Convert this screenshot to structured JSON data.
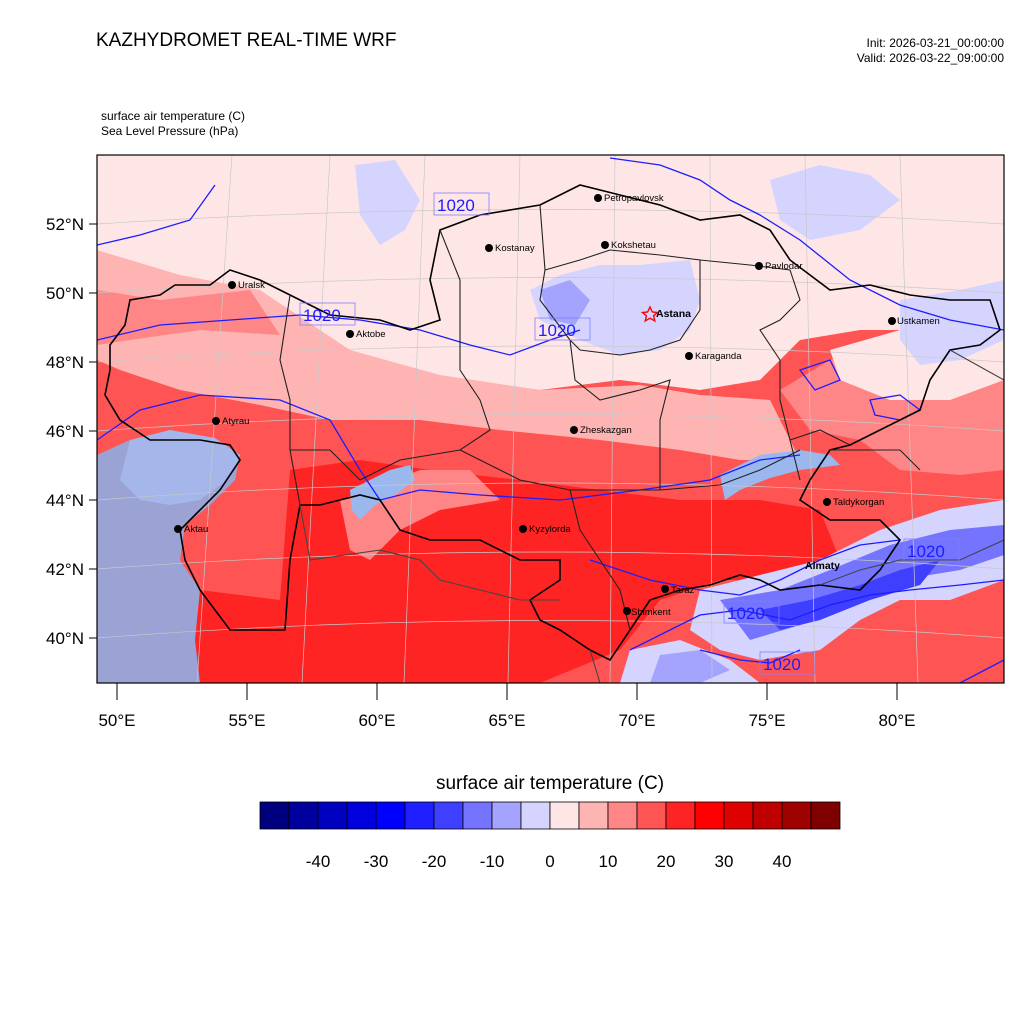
{
  "header": {
    "title": "KAZHYDROMET REAL-TIME WRF",
    "init": "Init: 2026-03-21_00:00:00",
    "valid": "Valid: 2026-03-22_09:00:00"
  },
  "fields": {
    "shaded": "surface air temperature   (C)",
    "contour": "Sea Level Pressure   (hPa)"
  },
  "map": {
    "lat_ticks": [
      "52°N",
      "50°N",
      "48°N",
      "46°N",
      "44°N",
      "42°N",
      "40°N"
    ],
    "lon_ticks": [
      "50°E",
      "55°E",
      "60°E",
      "65°E",
      "70°E",
      "75°E",
      "80°E"
    ],
    "cities": [
      {
        "name": "Petropavlovsk"
      },
      {
        "name": "Kostanay"
      },
      {
        "name": "Kokshetau"
      },
      {
        "name": "Pavlodar"
      },
      {
        "name": "Uralsk"
      },
      {
        "name": "Aktobe"
      },
      {
        "name": "Astana",
        "capital": true
      },
      {
        "name": "Ustkamen"
      },
      {
        "name": "Karaganda"
      },
      {
        "name": "Atyrau"
      },
      {
        "name": "Zheskazgan"
      },
      {
        "name": "Taldykorgan"
      },
      {
        "name": "Aktau"
      },
      {
        "name": "Kyzylorda"
      },
      {
        "name": "Almaty"
      },
      {
        "name": "Taraz"
      },
      {
        "name": "Shimkent"
      }
    ],
    "isobar_labels": [
      "1020",
      "1020",
      "1020",
      "1020",
      "1020",
      "1020"
    ],
    "colors": {
      "isobar": "#1d1dff",
      "border": "#000000",
      "capital_marker": "#ff0000"
    }
  },
  "colorbar": {
    "title": "surface air temperature  (C)",
    "colors": [
      "#00007f",
      "#00009f",
      "#0000bf",
      "#0000df",
      "#0000ff",
      "#1f1fff",
      "#3f3fff",
      "#7474ff",
      "#a4a4ff",
      "#d4d4ff",
      "#ffe6e6",
      "#ffb4b4",
      "#ff8686",
      "#ff5454",
      "#ff2424",
      "#ff0000",
      "#df0000",
      "#bf0000",
      "#9f0000",
      "#7f0000"
    ],
    "tick_labels": [
      "-40",
      "-30",
      "-20",
      "-10",
      "0",
      "10",
      "20",
      "30",
      "40"
    ]
  }
}
